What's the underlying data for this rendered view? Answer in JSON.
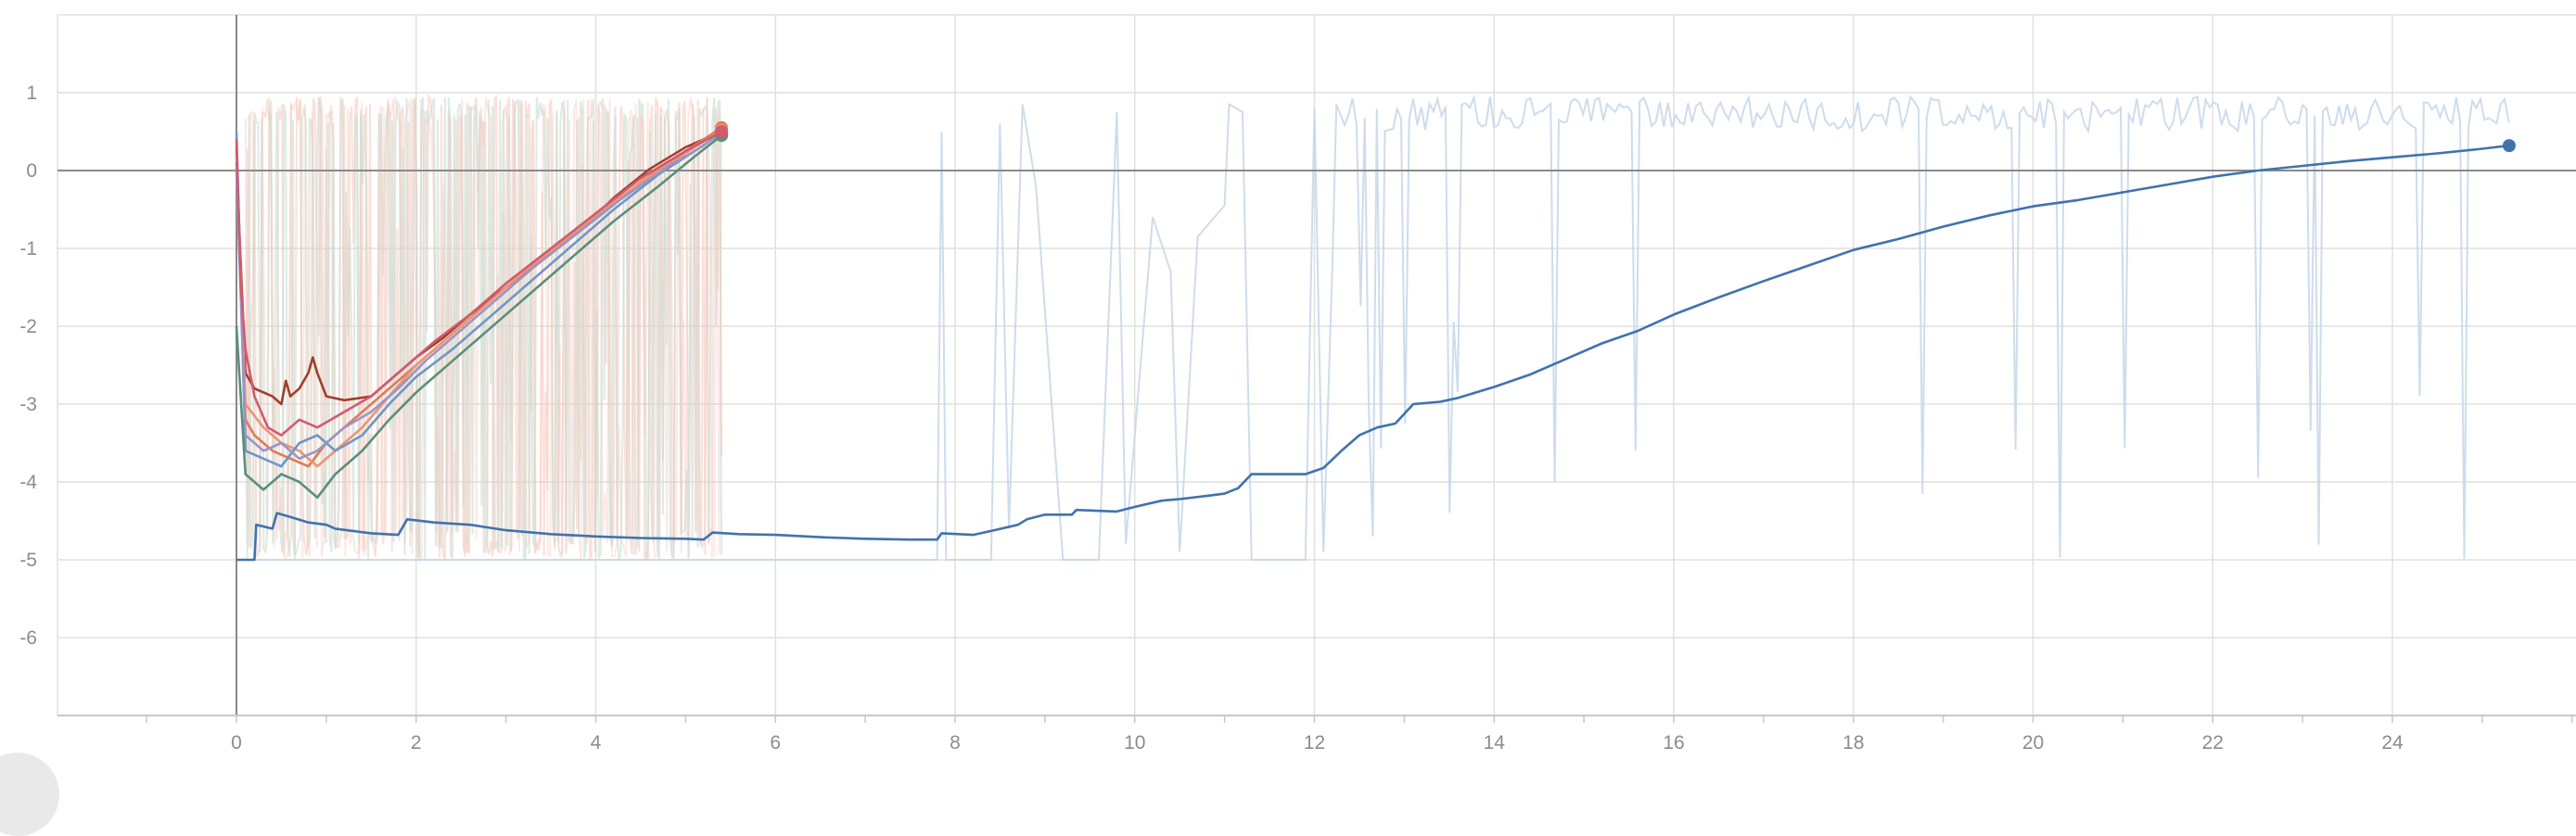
{
  "chart_data": {
    "type": "line",
    "title": "",
    "xlabel": "",
    "ylabel": "",
    "xlim": [
      -2,
      26.5
    ],
    "ylim": [
      -7,
      2
    ],
    "x_ticks": [
      0,
      2,
      4,
      6,
      8,
      10,
      12,
      14,
      16,
      18,
      20,
      22,
      24
    ],
    "y_ticks": [
      1,
      0,
      -1,
      -2,
      -3,
      -4,
      -5,
      -6
    ],
    "grid": true,
    "legend": "none",
    "colors": {
      "grid": "#e0e0e0",
      "zero_line": "#8a8a8a",
      "axis": "#c8c8c8",
      "raw_long": "#c6d6e8",
      "raw_short_a": "#f6c9bd",
      "raw_short_b": "#c6ded2"
    },
    "series": [
      {
        "color": "#3f73ae",
        "points": [
          [
            0,
            -5
          ],
          [
            0.2,
            -5
          ],
          [
            0.22,
            -4.55
          ],
          [
            0.4,
            -4.6
          ],
          [
            0.45,
            -4.4
          ],
          [
            0.6,
            -4.45
          ],
          [
            0.8,
            -4.52
          ],
          [
            1.0,
            -4.55
          ],
          [
            1.1,
            -4.6
          ],
          [
            1.3,
            -4.63
          ],
          [
            1.5,
            -4.66
          ],
          [
            1.8,
            -4.68
          ],
          [
            1.9,
            -4.48
          ],
          [
            2.2,
            -4.52
          ],
          [
            2.6,
            -4.55
          ],
          [
            3.0,
            -4.62
          ],
          [
            3.5,
            -4.67
          ],
          [
            4.0,
            -4.7
          ],
          [
            4.5,
            -4.72
          ],
          [
            5.0,
            -4.73
          ],
          [
            5.2,
            -4.74
          ],
          [
            5.3,
            -4.65
          ],
          [
            5.6,
            -4.67
          ],
          [
            6.0,
            -4.68
          ],
          [
            6.5,
            -4.71
          ],
          [
            7.0,
            -4.73
          ],
          [
            7.5,
            -4.74
          ],
          [
            7.8,
            -4.74
          ],
          [
            7.85,
            -4.66
          ],
          [
            8.2,
            -4.68
          ],
          [
            8.4,
            -4.63
          ],
          [
            8.7,
            -4.55
          ],
          [
            8.8,
            -4.48
          ],
          [
            9.0,
            -4.42
          ],
          [
            9.3,
            -4.42
          ],
          [
            9.35,
            -4.36
          ],
          [
            9.8,
            -4.38
          ],
          [
            10.0,
            -4.32
          ],
          [
            10.3,
            -4.24
          ],
          [
            10.5,
            -4.22
          ],
          [
            10.8,
            -4.18
          ],
          [
            11.0,
            -4.15
          ],
          [
            11.15,
            -4.08
          ],
          [
            11.3,
            -3.9
          ],
          [
            11.6,
            -3.9
          ],
          [
            11.9,
            -3.9
          ],
          [
            12.1,
            -3.82
          ],
          [
            12.3,
            -3.6
          ],
          [
            12.5,
            -3.4
          ],
          [
            12.7,
            -3.3
          ],
          [
            12.9,
            -3.25
          ],
          [
            13.1,
            -3.0
          ],
          [
            13.4,
            -2.97
          ],
          [
            13.6,
            -2.92
          ],
          [
            14.0,
            -2.78
          ],
          [
            14.4,
            -2.62
          ],
          [
            14.8,
            -2.42
          ],
          [
            15.2,
            -2.22
          ],
          [
            15.6,
            -2.06
          ],
          [
            16.0,
            -1.85
          ],
          [
            16.5,
            -1.63
          ],
          [
            17.0,
            -1.42
          ],
          [
            17.5,
            -1.22
          ],
          [
            18.0,
            -1.02
          ],
          [
            18.5,
            -0.88
          ],
          [
            19.0,
            -0.72
          ],
          [
            19.5,
            -0.58
          ],
          [
            20.0,
            -0.46
          ],
          [
            20.5,
            -0.38
          ],
          [
            21.0,
            -0.28
          ],
          [
            21.5,
            -0.18
          ],
          [
            22.0,
            -0.08
          ],
          [
            22.5,
            0.0
          ],
          [
            23.0,
            0.06
          ],
          [
            23.5,
            0.12
          ],
          [
            24.0,
            0.17
          ],
          [
            24.5,
            0.22
          ],
          [
            25.0,
            0.28
          ],
          [
            25.3,
            0.32
          ]
        ]
      },
      {
        "color": "#a33e2c",
        "points": [
          [
            0,
            0.1
          ],
          [
            0.1,
            -2.6
          ],
          [
            0.2,
            -2.8
          ],
          [
            0.4,
            -2.9
          ],
          [
            0.5,
            -3.0
          ],
          [
            0.55,
            -2.7
          ],
          [
            0.6,
            -2.9
          ],
          [
            0.7,
            -2.8
          ],
          [
            0.8,
            -2.6
          ],
          [
            0.85,
            -2.4
          ],
          [
            0.9,
            -2.6
          ],
          [
            1.0,
            -2.9
          ],
          [
            1.2,
            -2.95
          ],
          [
            1.5,
            -2.9
          ],
          [
            1.8,
            -2.6
          ],
          [
            2.0,
            -2.4
          ],
          [
            2.3,
            -2.15
          ],
          [
            2.6,
            -1.85
          ],
          [
            3.0,
            -1.5
          ],
          [
            3.4,
            -1.15
          ],
          [
            3.8,
            -0.8
          ],
          [
            4.2,
            -0.35
          ],
          [
            4.6,
            0.02
          ],
          [
            5.0,
            0.3
          ],
          [
            5.4,
            0.5
          ]
        ]
      },
      {
        "color": "#e07a53",
        "points": [
          [
            0,
            0.3
          ],
          [
            0.1,
            -3.2
          ],
          [
            0.2,
            -3.4
          ],
          [
            0.4,
            -3.6
          ],
          [
            0.6,
            -3.7
          ],
          [
            0.8,
            -3.8
          ],
          [
            1.0,
            -3.5
          ],
          [
            1.2,
            -3.3
          ],
          [
            1.5,
            -3.0
          ],
          [
            1.8,
            -2.7
          ],
          [
            2.2,
            -2.3
          ],
          [
            2.6,
            -1.9
          ],
          [
            3.0,
            -1.5
          ],
          [
            3.5,
            -1.05
          ],
          [
            4.0,
            -0.6
          ],
          [
            4.5,
            -0.15
          ],
          [
            5.0,
            0.25
          ],
          [
            5.4,
            0.55
          ]
        ]
      },
      {
        "color": "#ee9474",
        "points": [
          [
            0,
            0.2
          ],
          [
            0.1,
            -3.0
          ],
          [
            0.3,
            -3.3
          ],
          [
            0.5,
            -3.5
          ],
          [
            0.7,
            -3.6
          ],
          [
            0.9,
            -3.8
          ],
          [
            1.1,
            -3.6
          ],
          [
            1.4,
            -3.3
          ],
          [
            1.7,
            -2.9
          ],
          [
            2.0,
            -2.5
          ],
          [
            2.4,
            -2.1
          ],
          [
            2.8,
            -1.7
          ],
          [
            3.2,
            -1.3
          ],
          [
            3.7,
            -0.85
          ],
          [
            4.2,
            -0.4
          ],
          [
            4.7,
            0.0
          ],
          [
            5.1,
            0.3
          ],
          [
            5.4,
            0.52
          ]
        ]
      },
      {
        "color": "#6d97c7",
        "points": [
          [
            0,
            0.5
          ],
          [
            0.1,
            -3.6
          ],
          [
            0.3,
            -3.7
          ],
          [
            0.5,
            -3.8
          ],
          [
            0.7,
            -3.5
          ],
          [
            0.9,
            -3.4
          ],
          [
            1.1,
            -3.6
          ],
          [
            1.4,
            -3.4
          ],
          [
            1.7,
            -3.0
          ],
          [
            2.0,
            -2.65
          ],
          [
            2.4,
            -2.3
          ],
          [
            2.8,
            -1.9
          ],
          [
            3.2,
            -1.5
          ],
          [
            3.7,
            -1.0
          ],
          [
            4.2,
            -0.5
          ],
          [
            4.7,
            -0.05
          ],
          [
            5.1,
            0.25
          ],
          [
            5.4,
            0.48
          ]
        ]
      },
      {
        "color": "#9a94c6",
        "points": [
          [
            0,
            0.0
          ],
          [
            0.1,
            -3.4
          ],
          [
            0.3,
            -3.6
          ],
          [
            0.5,
            -3.5
          ],
          [
            0.7,
            -3.7
          ],
          [
            0.9,
            -3.6
          ],
          [
            1.2,
            -3.3
          ],
          [
            1.5,
            -3.1
          ],
          [
            1.8,
            -2.8
          ],
          [
            2.1,
            -2.45
          ],
          [
            2.5,
            -2.05
          ],
          [
            2.9,
            -1.65
          ],
          [
            3.3,
            -1.25
          ],
          [
            3.8,
            -0.8
          ],
          [
            4.3,
            -0.35
          ],
          [
            4.8,
            0.05
          ],
          [
            5.2,
            0.32
          ],
          [
            5.4,
            0.5
          ]
        ]
      },
      {
        "color": "#5a8f7b",
        "points": [
          [
            0,
            -2.0
          ],
          [
            0.1,
            -3.9
          ],
          [
            0.3,
            -4.1
          ],
          [
            0.5,
            -3.9
          ],
          [
            0.7,
            -4.0
          ],
          [
            0.9,
            -4.2
          ],
          [
            1.1,
            -3.9
          ],
          [
            1.4,
            -3.6
          ],
          [
            1.7,
            -3.2
          ],
          [
            2.0,
            -2.85
          ],
          [
            2.4,
            -2.45
          ],
          [
            2.8,
            -2.05
          ],
          [
            3.2,
            -1.65
          ],
          [
            3.7,
            -1.15
          ],
          [
            4.2,
            -0.65
          ],
          [
            4.7,
            -0.2
          ],
          [
            5.1,
            0.18
          ],
          [
            5.4,
            0.45
          ]
        ]
      },
      {
        "color": "#d25a70",
        "points": [
          [
            0,
            0.4
          ],
          [
            0.05,
            -1.5
          ],
          [
            0.1,
            -2.3
          ],
          [
            0.2,
            -2.9
          ],
          [
            0.35,
            -3.3
          ],
          [
            0.5,
            -3.4
          ],
          [
            0.7,
            -3.2
          ],
          [
            0.9,
            -3.3
          ],
          [
            1.2,
            -3.1
          ],
          [
            1.5,
            -2.9
          ],
          [
            1.8,
            -2.6
          ],
          [
            2.2,
            -2.2
          ],
          [
            2.6,
            -1.85
          ],
          [
            3.0,
            -1.45
          ],
          [
            3.5,
            -1.0
          ],
          [
            4.0,
            -0.55
          ],
          [
            4.5,
            -0.1
          ],
          [
            5.0,
            0.25
          ],
          [
            5.4,
            0.5
          ]
        ]
      }
    ]
  }
}
